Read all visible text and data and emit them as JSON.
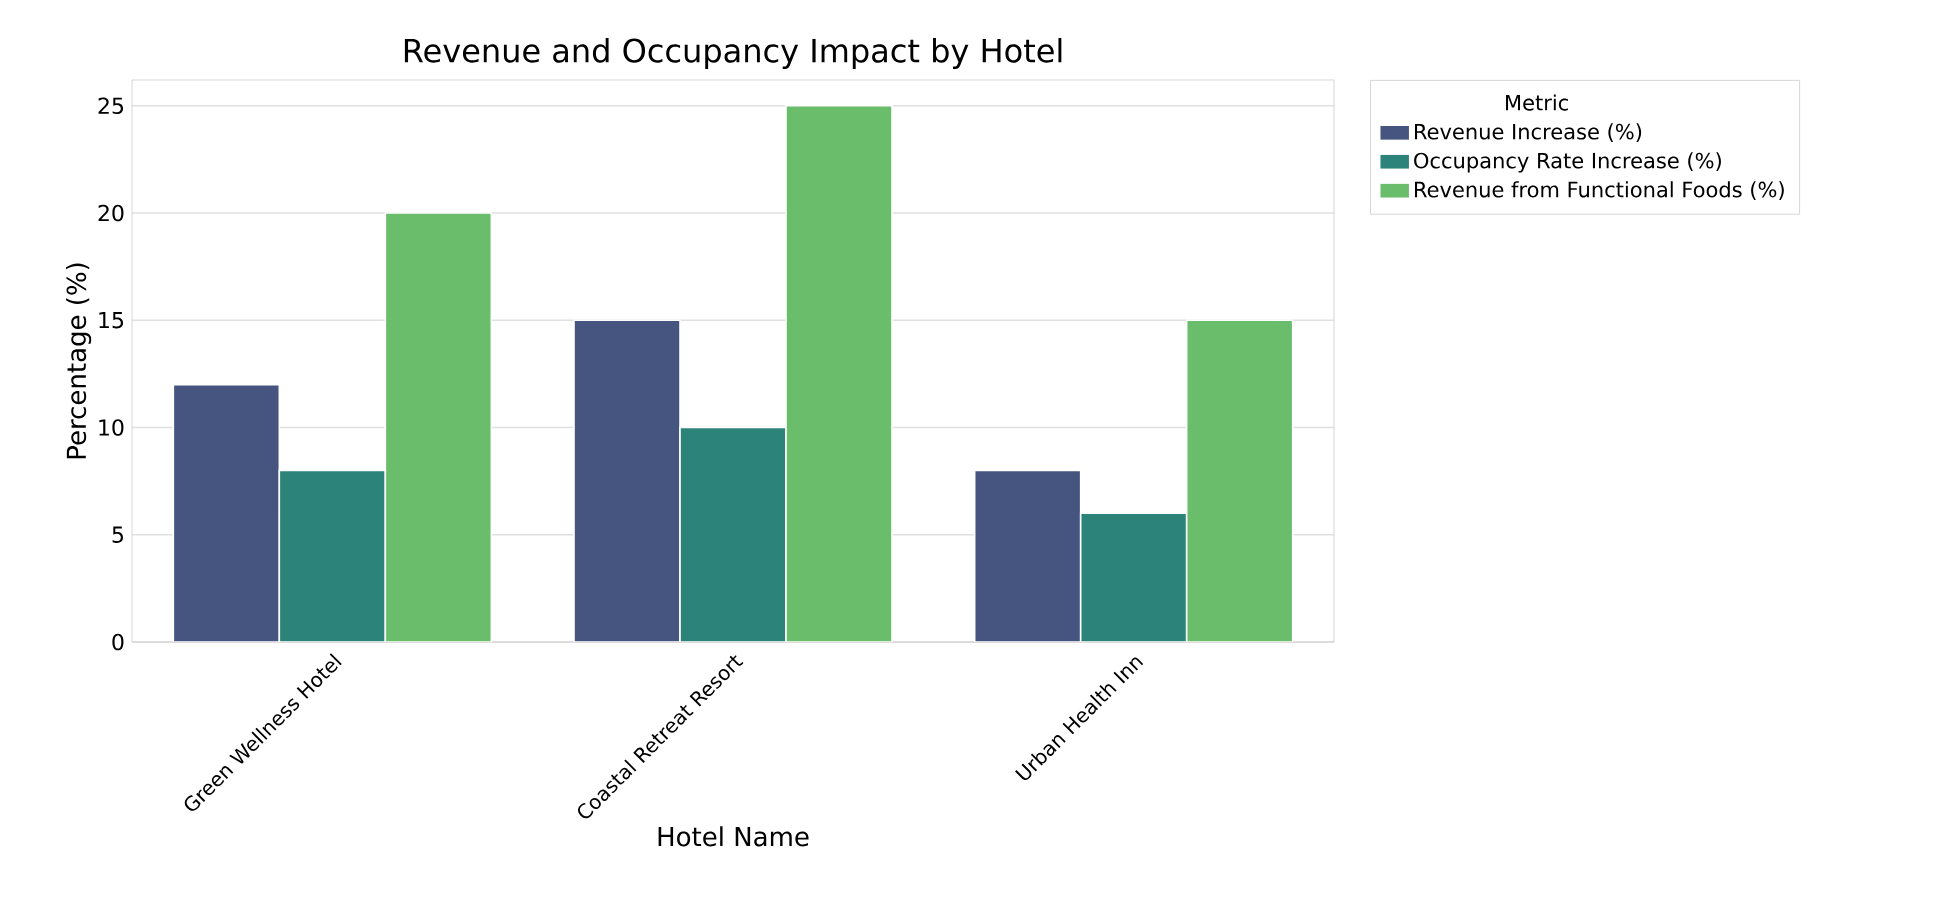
{
  "chart_data": {
    "type": "bar",
    "title": "Revenue and Occupancy Impact by Hotel",
    "xlabel": "Hotel Name",
    "ylabel": "Percentage (%)",
    "legend_title": "Metric",
    "categories": [
      "Green Wellness Hotel",
      "Coastal Retreat Resort",
      "Urban Health Inn"
    ],
    "series": [
      {
        "name": "Revenue Increase (%)",
        "color": "#46557f",
        "values": [
          12,
          15,
          8
        ]
      },
      {
        "name": "Occupancy Rate Increase (%)",
        "color": "#2b837a",
        "values": [
          8,
          10,
          6
        ]
      },
      {
        "name": "Revenue from Functional Foods (%)",
        "color": "#6abd6a",
        "values": [
          20,
          25,
          15
        ]
      }
    ],
    "ylim": [
      0,
      26.2
    ],
    "yticks": [
      0,
      5,
      10,
      15,
      20,
      25
    ],
    "grid": "y",
    "legend": "top right"
  }
}
